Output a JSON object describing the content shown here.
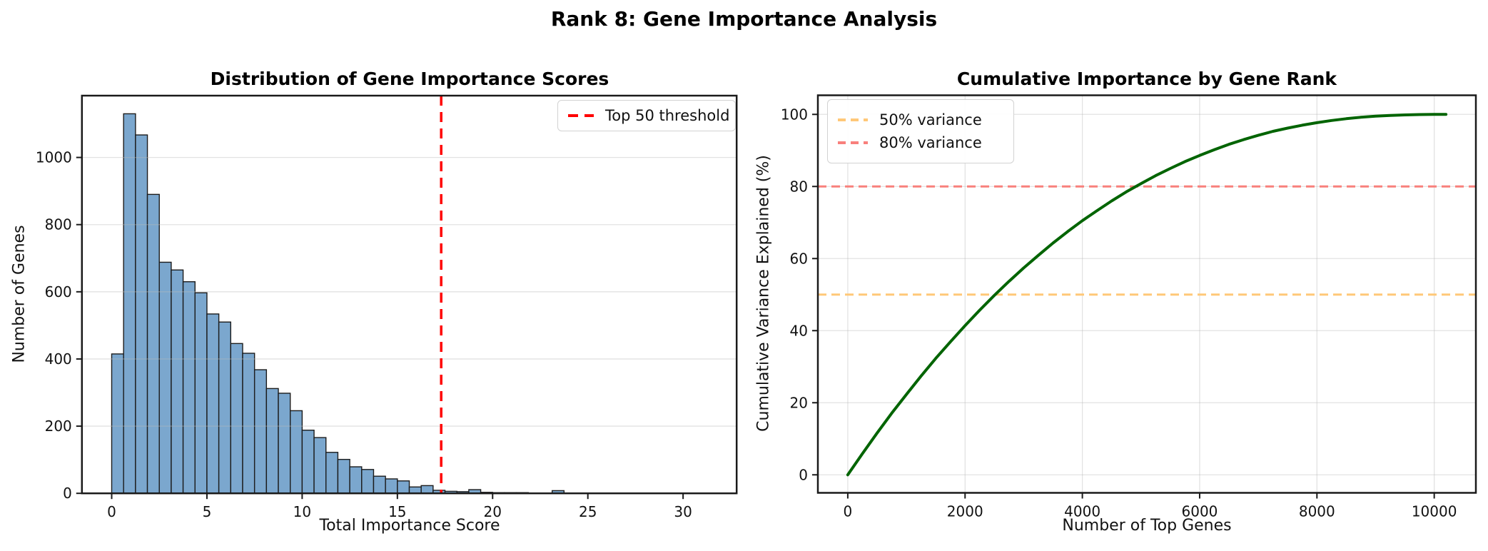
{
  "figure_title": "Rank 8: Gene Importance Analysis",
  "chart_data": [
    {
      "type": "histogram",
      "title": "Distribution of Gene Importance Scores",
      "xlabel": "Total Importance Score",
      "ylabel": "Number of Genes",
      "bin_start": 0,
      "bin_width": 0.625,
      "counts": [
        415,
        1130,
        1067,
        890,
        688,
        665,
        630,
        597,
        534,
        510,
        446,
        417,
        368,
        312,
        298,
        246,
        188,
        166,
        122,
        101,
        79,
        71,
        51,
        43,
        37,
        19,
        23,
        9,
        6,
        5,
        11,
        3,
        2,
        2,
        2,
        1,
        1,
        8,
        1,
        0,
        1,
        0,
        0,
        0,
        0,
        0,
        0,
        0,
        0,
        1
      ],
      "xlim": [
        -1.5625,
        32.8125
      ],
      "ylim": [
        0,
        1184
      ],
      "xticks": [
        0,
        5,
        10,
        15,
        20,
        25,
        30
      ],
      "yticks": [
        0,
        200,
        400,
        600,
        800,
        1000
      ],
      "grid": "y",
      "bar_color": "#7BA7CE",
      "bar_edge": "#1c1c1c",
      "threshold": {
        "x": 17.3,
        "color": "#FF0000",
        "label": "Top 50 threshold"
      },
      "legend": [
        {
          "label": "Top 50 threshold",
          "color": "#FF0000"
        }
      ],
      "legend_position": "upper right"
    },
    {
      "type": "line",
      "title": "Cumulative Importance by Gene Rank",
      "xlabel": "Number of Top Genes",
      "ylabel": "Cumulative Variance Explained (%)",
      "x": [
        0,
        250,
        500,
        750,
        1000,
        1250,
        1500,
        1750,
        2000,
        2250,
        2500,
        2750,
        3000,
        3250,
        3500,
        3750,
        4000,
        4250,
        4500,
        4750,
        5000,
        5250,
        5500,
        5750,
        6000,
        6250,
        6500,
        6750,
        7000,
        7250,
        7500,
        7750,
        8000,
        8250,
        8500,
        8750,
        9000,
        9250,
        9500,
        9750,
        10000,
        10200
      ],
      "y": [
        0,
        5.9,
        11.6,
        17.1,
        22.3,
        27.4,
        32.3,
        36.9,
        41.4,
        45.7,
        49.8,
        53.7,
        57.4,
        60.9,
        64.3,
        67.5,
        70.5,
        73.3,
        76.0,
        78.5,
        80.8,
        83.0,
        85.0,
        86.9,
        88.6,
        90.2,
        91.7,
        93.0,
        94.2,
        95.3,
        96.2,
        97.0,
        97.7,
        98.3,
        98.8,
        99.2,
        99.5,
        99.7,
        99.86,
        99.95,
        99.99,
        100
      ],
      "line_color": "#006400",
      "xlim": [
        -510,
        10710
      ],
      "ylim": [
        -5,
        105.3
      ],
      "xticks": [
        0,
        2000,
        4000,
        6000,
        8000,
        10000
      ],
      "yticks": [
        0,
        20,
        40,
        60,
        80,
        100
      ],
      "grid": "both",
      "hlines": [
        {
          "y": 50,
          "color": "#FFC878",
          "label": "50% variance"
        },
        {
          "y": 80,
          "color": "#F8807C",
          "label": "80% variance"
        }
      ],
      "legend": [
        {
          "label": "50% variance",
          "color": "#FFC878"
        },
        {
          "label": "80% variance",
          "color": "#F8807C"
        }
      ],
      "legend_position": "upper left"
    }
  ]
}
